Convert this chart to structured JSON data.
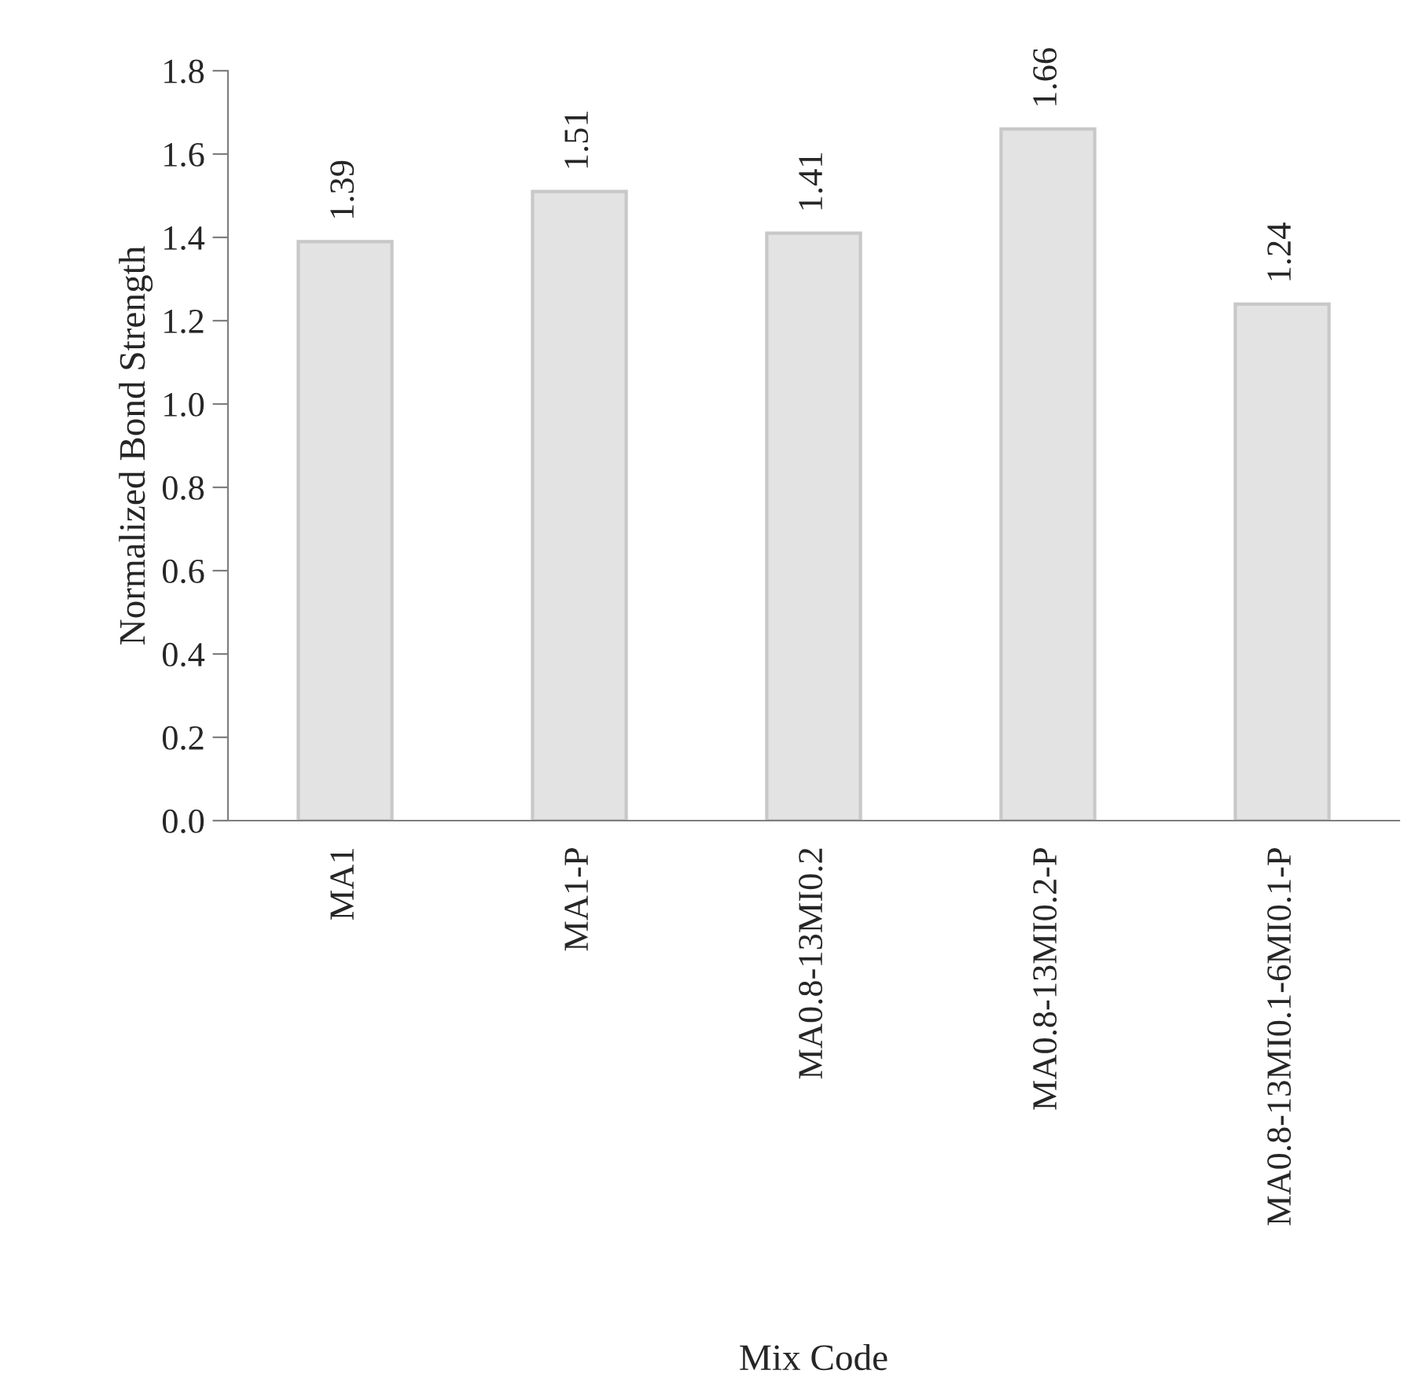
{
  "chart_data": {
    "type": "bar",
    "xlabel": "Mix Code",
    "ylabel": "Normalized Bond Strength",
    "categories": [
      "MA1",
      "MA1-P",
      "MA0.8-13MI0.2",
      "MA0.8-13MI0.2-P",
      "MA0.8-13MI0.1-6MI0.1-P"
    ],
    "values": [
      1.39,
      1.51,
      1.41,
      1.66,
      1.24
    ],
    "color": "#e3e3e3",
    "ylim": [
      0,
      1.8
    ],
    "yticks": [
      {
        "value": 0,
        "label": "0.0"
      },
      {
        "value": 0.2,
        "label": "0.2"
      },
      {
        "value": 0.4,
        "label": "0.4"
      },
      {
        "value": 0.6,
        "label": "0.6"
      },
      {
        "value": 0.8,
        "label": "0.8"
      },
      {
        "value": 1.0,
        "label": "1.0"
      },
      {
        "value": 1.2,
        "label": "1.2"
      },
      {
        "value": 1.4,
        "label": "1.4"
      },
      {
        "value": 1.6,
        "label": "1.6"
      },
      {
        "value": 1.8,
        "label": "1.8"
      }
    ],
    "data_labels": true,
    "grid": false,
    "legend": false
  }
}
